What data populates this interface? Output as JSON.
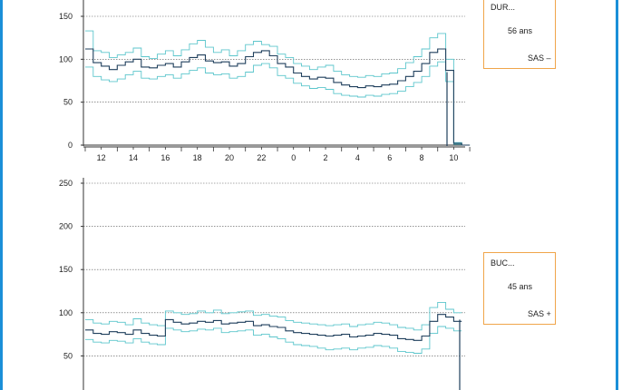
{
  "colors": {
    "frame": "#1a8fd8",
    "median": "#1f3f5c",
    "band": "#5cc6cc",
    "box_border": "#f0a54a",
    "grid": "#555555"
  },
  "chart_data": [
    {
      "type": "line",
      "title": "",
      "xlabel": "",
      "ylabel": "",
      "ylim": [
        0,
        150
      ],
      "yticks": [
        0,
        50,
        100,
        150
      ],
      "x_tick_labels": [
        "12",
        "14",
        "16",
        "18",
        "20",
        "22",
        "0",
        "2",
        "4",
        "6",
        "8",
        "10"
      ],
      "grid": true,
      "x": [
        "11:00",
        "11:30",
        "12:00",
        "12:30",
        "13:00",
        "13:30",
        "14:00",
        "14:30",
        "15:00",
        "15:30",
        "16:00",
        "16:30",
        "17:00",
        "17:30",
        "18:00",
        "18:30",
        "19:00",
        "19:30",
        "20:00",
        "20:30",
        "21:00",
        "21:30",
        "22:00",
        "22:30",
        "23:00",
        "23:30",
        "0:00",
        "0:30",
        "1:00",
        "1:30",
        "2:00",
        "2:30",
        "3:00",
        "3:30",
        "4:00",
        "4:30",
        "5:00",
        "5:30",
        "6:00",
        "6:30",
        "7:00",
        "7:30",
        "8:00",
        "8:30",
        "9:00",
        "9:30",
        "10:00",
        "10:30"
      ],
      "series": [
        {
          "values": [
            112,
            96,
            92,
            88,
            93,
            97,
            100,
            91,
            90,
            93,
            95,
            91,
            97,
            102,
            105,
            98,
            96,
            97,
            92,
            95,
            103,
            108,
            110,
            104,
            95,
            91,
            84,
            80,
            77,
            79,
            78,
            73,
            70,
            68,
            67,
            69,
            68,
            70,
            71,
            75,
            80,
            86,
            95,
            108,
            112,
            87,
            2,
            0
          ]
        },
        {
          "values": [
            133,
            110,
            108,
            102,
            105,
            108,
            113,
            103,
            101,
            106,
            110,
            104,
            111,
            118,
            122,
            114,
            108,
            111,
            104,
            110,
            117,
            121,
            117,
            115,
            106,
            102,
            95,
            92,
            88,
            91,
            93,
            86,
            82,
            80,
            79,
            81,
            80,
            83,
            84,
            89,
            96,
            103,
            112,
            125,
            130,
            100,
            3,
            0
          ]
        },
        {
          "values": [
            91,
            80,
            76,
            74,
            77,
            82,
            86,
            78,
            77,
            80,
            82,
            78,
            83,
            87,
            90,
            84,
            82,
            83,
            78,
            80,
            85,
            93,
            95,
            90,
            81,
            78,
            72,
            69,
            66,
            67,
            65,
            60,
            58,
            57,
            56,
            58,
            57,
            59,
            60,
            63,
            68,
            73,
            80,
            92,
            97,
            74,
            1,
            0
          ]
        }
      ]
    },
    {
      "type": "line",
      "title": "",
      "xlabel": "",
      "ylabel": "",
      "ylim": [
        0,
        250
      ],
      "yticks": [
        50,
        100,
        150,
        200,
        250
      ],
      "grid": true,
      "x": [
        "11:00",
        "11:30",
        "12:00",
        "12:30",
        "13:00",
        "13:30",
        "14:00",
        "14:30",
        "15:00",
        "15:30",
        "16:00",
        "16:30",
        "17:00",
        "17:30",
        "18:00",
        "18:30",
        "19:00",
        "19:30",
        "20:00",
        "20:30",
        "21:00",
        "21:30",
        "22:00",
        "22:30",
        "23:00",
        "23:30",
        "0:00",
        "0:30",
        "1:00",
        "1:30",
        "2:00",
        "2:30",
        "3:00",
        "3:30",
        "4:00",
        "4:30",
        "5:00",
        "5:30",
        "6:00",
        "6:30",
        "7:00",
        "7:30",
        "8:00",
        "8:30",
        "9:00",
        "9:30",
        "10:00"
      ],
      "series": [
        {
          "values": [
            80,
            76,
            75,
            78,
            77,
            75,
            80,
            76,
            74,
            73,
            92,
            89,
            87,
            88,
            90,
            89,
            91,
            87,
            88,
            89,
            90,
            85,
            86,
            84,
            83,
            79,
            77,
            76,
            75,
            74,
            73,
            74,
            75,
            72,
            73,
            74,
            76,
            75,
            74,
            70,
            69,
            68,
            73,
            90,
            98,
            95,
            90
          ]
        },
        {
          "values": [
            92,
            88,
            87,
            90,
            89,
            86,
            93,
            88,
            86,
            85,
            102,
            100,
            98,
            99,
            102,
            100,
            103,
            99,
            100,
            101,
            102,
            97,
            98,
            96,
            95,
            91,
            89,
            88,
            87,
            86,
            85,
            86,
            87,
            84,
            86,
            87,
            89,
            88,
            86,
            83,
            82,
            80,
            86,
            106,
            112,
            104,
            100
          ]
        },
        {
          "values": [
            69,
            66,
            65,
            68,
            67,
            65,
            70,
            66,
            64,
            63,
            82,
            80,
            78,
            79,
            81,
            80,
            82,
            77,
            78,
            79,
            80,
            74,
            75,
            72,
            70,
            66,
            63,
            62,
            61,
            59,
            57,
            58,
            59,
            57,
            59,
            60,
            62,
            61,
            59,
            55,
            54,
            53,
            58,
            76,
            84,
            82,
            79
          ]
        }
      ]
    }
  ],
  "boxes": [
    {
      "name": "DUR...",
      "age": "56 ans",
      "sas": "SAS –"
    },
    {
      "name": "BUC...",
      "age": "45 ans",
      "sas": "SAS +"
    }
  ]
}
